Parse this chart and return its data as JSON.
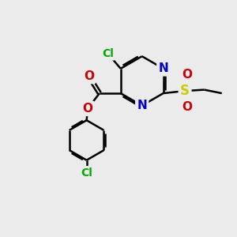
{
  "bg_color": "#ebebeb",
  "bond_color": "#000000",
  "bond_width": 1.8,
  "atom_colors": {
    "C": "#000000",
    "N": "#0000cc",
    "O": "#cc0000",
    "S": "#cccc00",
    "Cl": "#00aa00"
  },
  "font_size": 10,
  "figsize": [
    3.0,
    3.0
  ],
  "dpi": 100
}
